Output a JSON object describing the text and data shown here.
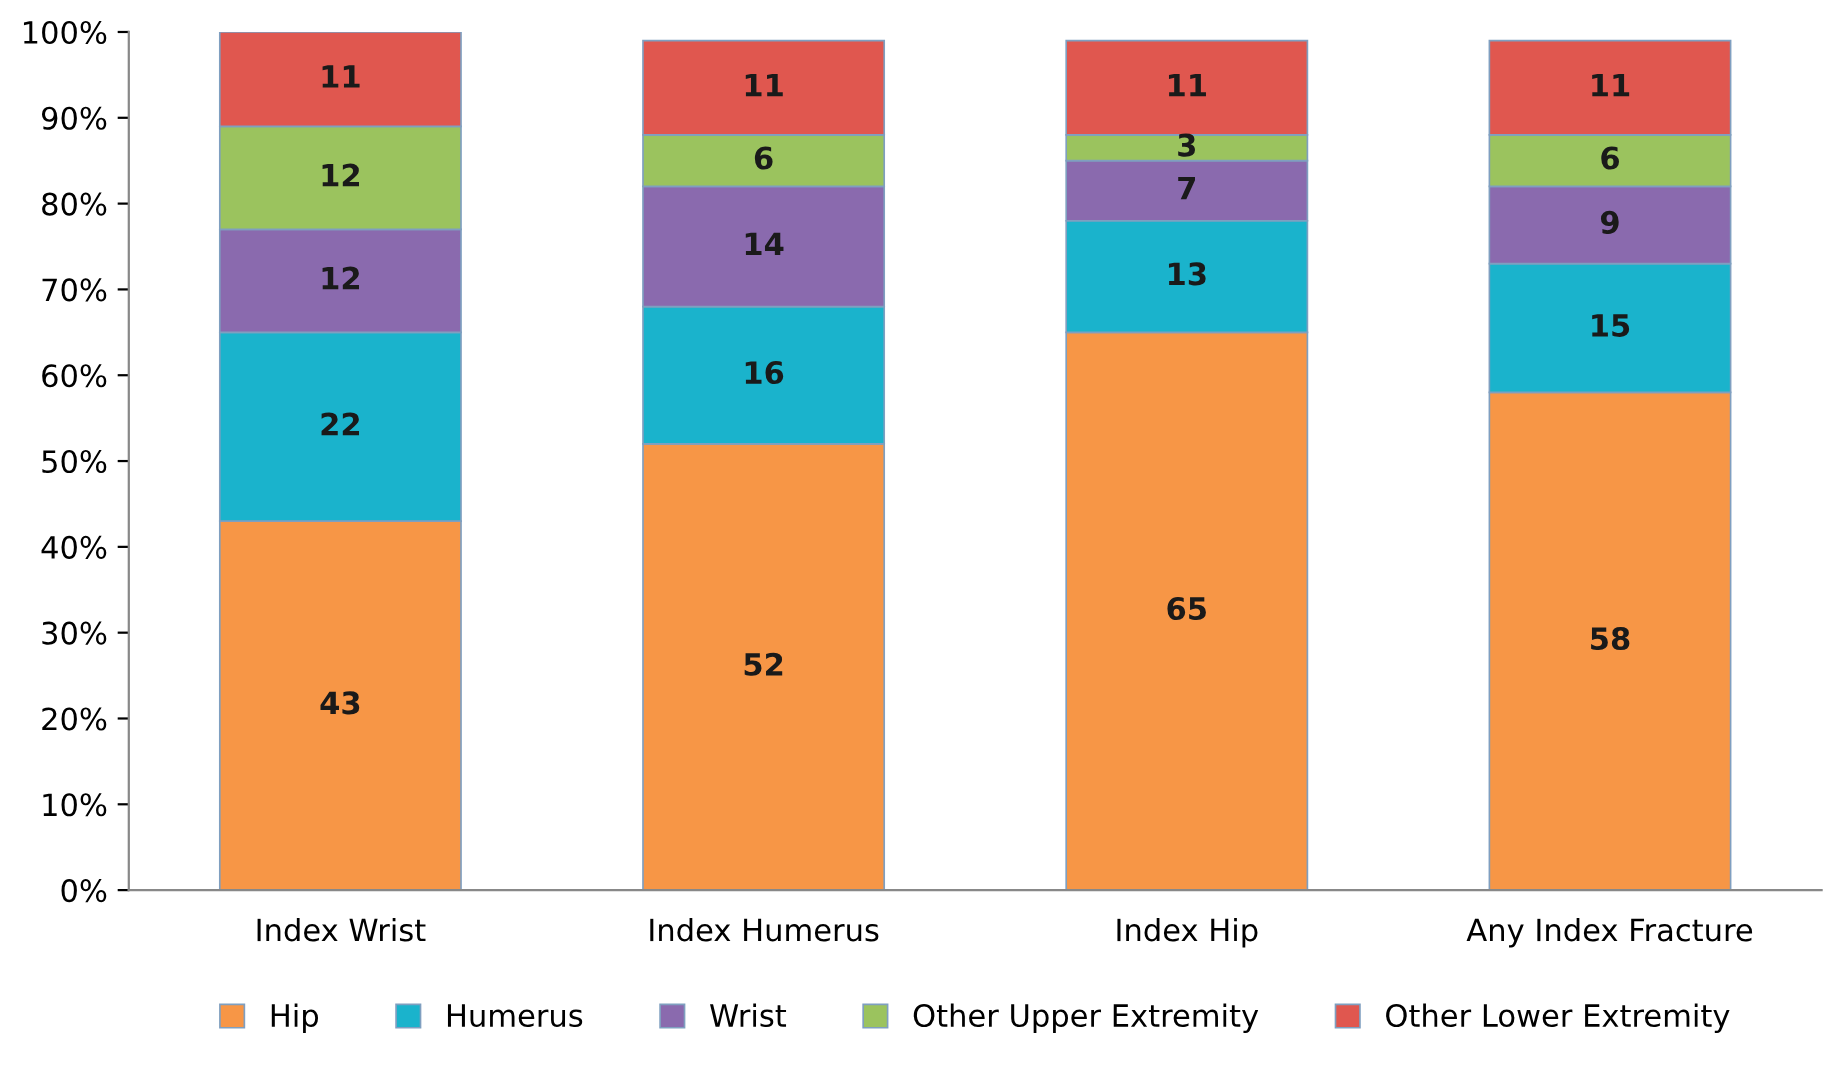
{
  "chart_data": {
    "type": "bar",
    "stacked": true,
    "categories": [
      "Index Wrist",
      "Index Humerus",
      "Index Hip",
      "Any Index Fracture"
    ],
    "series": [
      {
        "name": "Hip",
        "color": "#f79646",
        "values": [
          43,
          52,
          65,
          58
        ]
      },
      {
        "name": "Humerus",
        "color": "#1ab3cc",
        "values": [
          22,
          16,
          13,
          15
        ]
      },
      {
        "name": "Wrist",
        "color": "#8a6aae",
        "values": [
          12,
          14,
          7,
          9
        ]
      },
      {
        "name": "Other Upper Extremity",
        "color": "#9bc35e",
        "values": [
          12,
          6,
          3,
          6
        ]
      },
      {
        "name": "Other Lower Extremity",
        "color": "#e0574f",
        "values": [
          11,
          11,
          11,
          11
        ]
      }
    ],
    "ylim": [
      0,
      100
    ],
    "yticks": [
      {
        "value": 0,
        "label": "0%"
      },
      {
        "value": 10,
        "label": "10%"
      },
      {
        "value": 20,
        "label": "20%"
      },
      {
        "value": 30,
        "label": "30%"
      },
      {
        "value": 40,
        "label": "40%"
      },
      {
        "value": 50,
        "label": "50%"
      },
      {
        "value": 60,
        "label": "60%"
      },
      {
        "value": 70,
        "label": "70%"
      },
      {
        "value": 80,
        "label": "80%"
      },
      {
        "value": 90,
        "label": "90%"
      },
      {
        "value": 100,
        "label": "100%"
      }
    ],
    "data_labels": true,
    "legend": "bottom",
    "grid": false
  }
}
